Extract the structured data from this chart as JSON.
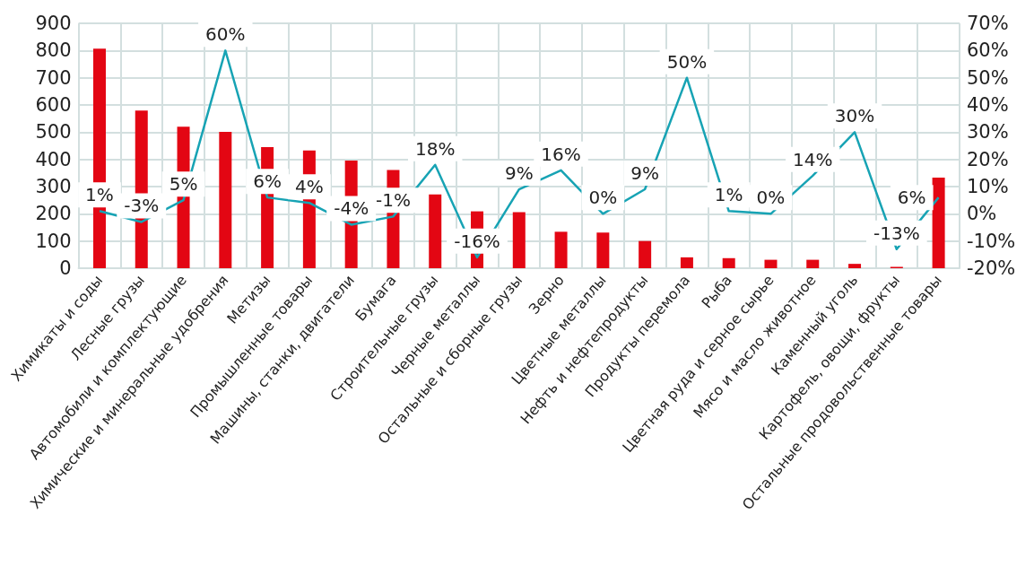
{
  "chart_data": {
    "type": "bar",
    "categories": [
      "Химикаты и соды",
      "Лесные грузы",
      "Автомобили и комплектующие",
      "Химические и минеральные удобрения",
      "Метизы",
      "Промышленные товары",
      "Машины, станки, двигатели",
      "Бумага",
      "Строительные грузы",
      "Черные металлы",
      "Остальные и сборные грузы",
      "Зерно",
      "Цветные металлы",
      "Нефть и нефтепродукты",
      "Продукты перемола",
      "Рыба",
      "Цветная руда и серное сырье",
      "Мясо и масло животное",
      "Каменный уголь",
      "Картофель, овощи, фрукты",
      "Остальные продовольственные товары"
    ],
    "series": [
      {
        "color": "#e30613",
        "values": [
          807,
          579,
          520,
          501,
          445,
          433,
          396,
          361,
          271,
          209,
          206,
          134,
          131,
          100,
          40,
          37,
          31,
          31,
          16,
          5,
          333
        ]
      },
      {
        "type": "line",
        "axis": "y2",
        "color": "#17a3b4",
        "values": [
          1,
          -3,
          5,
          60,
          6,
          4,
          -4,
          -1,
          18,
          -16,
          9,
          16,
          0,
          9,
          50,
          1,
          0,
          14,
          30,
          -13,
          6
        ],
        "value_labels": [
          "1%",
          "-3%",
          "5%",
          "60%",
          "6%",
          "4%",
          "-4%",
          "-1%",
          "18%",
          "-16%",
          "9%",
          "16%",
          "0%",
          "9%",
          "50%",
          "1%",
          "0%",
          "14%",
          "30%",
          "-13%",
          "6%"
        ]
      }
    ],
    "ylim": [
      0,
      900
    ],
    "yticks": [
      0,
      100,
      200,
      300,
      400,
      500,
      600,
      700,
      800,
      900
    ],
    "y2lim": [
      -20,
      70
    ],
    "y2ticks": [
      {
        "value": -20,
        "label": "-20%"
      },
      {
        "value": -10,
        "label": "-10%"
      },
      {
        "value": 0,
        "label": "0%"
      },
      {
        "value": 10,
        "label": "10%"
      },
      {
        "value": 20,
        "label": "20%"
      },
      {
        "value": 30,
        "label": "30%"
      },
      {
        "value": 40,
        "label": "40%"
      },
      {
        "value": 50,
        "label": "50%"
      },
      {
        "value": 60,
        "label": "60%"
      },
      {
        "value": 70,
        "label": "70%"
      }
    ],
    "grid": true,
    "marker": "none",
    "line_style": "solid"
  }
}
